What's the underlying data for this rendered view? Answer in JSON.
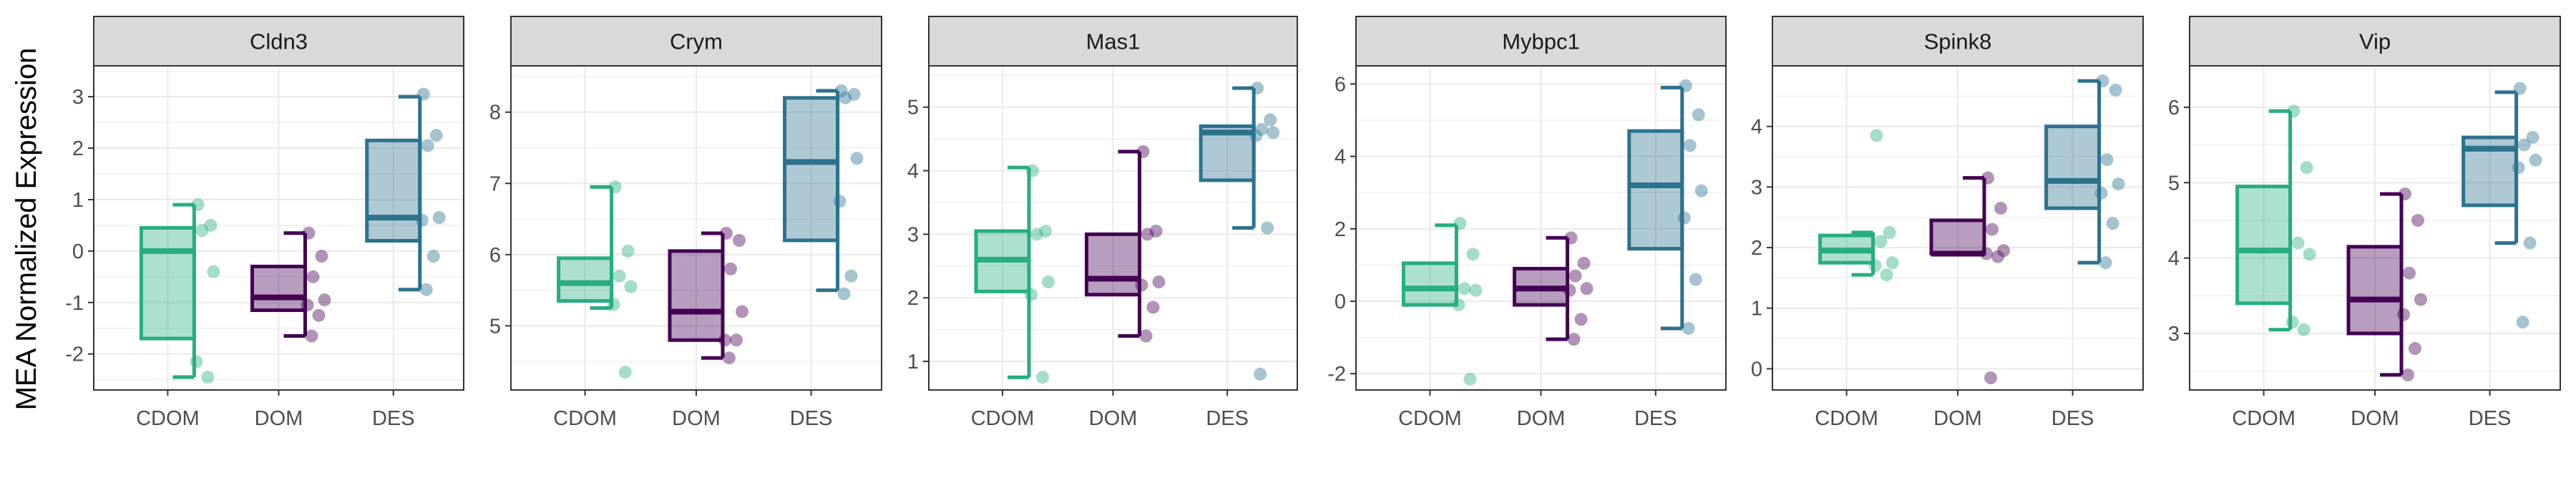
{
  "figure": {
    "ylabel": "MEA Normalized Expression"
  },
  "colors": {
    "CDOM": "#27ad81",
    "DOM": "#440154",
    "DES": "#2c728e",
    "strip_fill": "#d9d9d9",
    "grid": "#ebebeb",
    "border": "#333333"
  },
  "chart_data": [
    {
      "type": "boxplot",
      "title": "Cldn3",
      "categories": [
        "CDOM",
        "DOM",
        "DES"
      ],
      "ylim": [
        -2.7,
        3.6
      ],
      "yticks": [
        -2,
        -1,
        0,
        1,
        2,
        3
      ],
      "boxes": [
        {
          "group": "CDOM",
          "q1": -1.7,
          "median": 0.0,
          "q3": 0.45,
          "whisker_low": -2.45,
          "whisker_high": 0.9
        },
        {
          "group": "DOM",
          "q1": -1.15,
          "median": -0.9,
          "q3": -0.3,
          "whisker_low": -1.65,
          "whisker_high": 0.35
        },
        {
          "group": "DES",
          "q1": 0.2,
          "median": 0.65,
          "q3": 2.15,
          "whisker_low": -0.75,
          "whisker_high": 3.0
        }
      ],
      "points": [
        {
          "group": "CDOM",
          "values": [
            0.9,
            0.5,
            0.4,
            -0.4,
            -2.15,
            -2.45
          ]
        },
        {
          "group": "DOM",
          "values": [
            0.35,
            -0.1,
            -0.5,
            -0.95,
            -1.05,
            -1.25,
            -1.65
          ]
        },
        {
          "group": "DES",
          "values": [
            3.05,
            2.25,
            2.05,
            0.65,
            0.6,
            -0.1,
            -0.75
          ]
        }
      ]
    },
    {
      "type": "boxplot",
      "title": "Crym",
      "categories": [
        "CDOM",
        "DOM",
        "DES"
      ],
      "ylim": [
        4.1,
        8.65
      ],
      "yticks": [
        5,
        6,
        7,
        8
      ],
      "boxes": [
        {
          "group": "CDOM",
          "q1": 5.35,
          "median": 5.6,
          "q3": 5.95,
          "whisker_low": 5.25,
          "whisker_high": 6.95
        },
        {
          "group": "DOM",
          "q1": 4.8,
          "median": 5.2,
          "q3": 6.05,
          "whisker_low": 4.55,
          "whisker_high": 6.3
        },
        {
          "group": "DES",
          "q1": 6.2,
          "median": 7.3,
          "q3": 8.2,
          "whisker_low": 5.5,
          "whisker_high": 8.3
        }
      ],
      "points": [
        {
          "group": "CDOM",
          "values": [
            6.95,
            6.05,
            5.7,
            5.55,
            5.3,
            4.35
          ]
        },
        {
          "group": "DOM",
          "values": [
            6.3,
            6.2,
            5.8,
            5.2,
            4.8,
            4.8,
            4.55
          ]
        },
        {
          "group": "DES",
          "values": [
            8.3,
            8.25,
            8.2,
            7.35,
            6.75,
            5.7,
            5.45
          ]
        }
      ]
    },
    {
      "type": "boxplot",
      "title": "Mas1",
      "categories": [
        "CDOM",
        "DOM",
        "DES"
      ],
      "ylim": [
        0.55,
        5.65
      ],
      "yticks": [
        1,
        2,
        3,
        4,
        5
      ],
      "boxes": [
        {
          "group": "CDOM",
          "q1": 2.1,
          "median": 2.6,
          "q3": 3.05,
          "whisker_low": 0.75,
          "whisker_high": 4.05
        },
        {
          "group": "DOM",
          "q1": 2.05,
          "median": 2.3,
          "q3": 3.0,
          "whisker_low": 1.4,
          "whisker_high": 4.3
        },
        {
          "group": "DES",
          "q1": 3.85,
          "median": 4.6,
          "q3": 4.7,
          "whisker_low": 3.1,
          "whisker_high": 5.3
        }
      ],
      "points": [
        {
          "group": "CDOM",
          "values": [
            4.0,
            3.05,
            3.0,
            2.25,
            2.05,
            0.75
          ]
        },
        {
          "group": "DOM",
          "values": [
            4.3,
            3.05,
            3.0,
            2.25,
            2.2,
            1.85,
            1.4
          ]
        },
        {
          "group": "DES",
          "values": [
            5.3,
            4.8,
            4.65,
            4.6,
            4.55,
            3.1,
            0.8
          ]
        }
      ]
    },
    {
      "type": "boxplot",
      "title": "Mybpc1",
      "categories": [
        "CDOM",
        "DOM",
        "DES"
      ],
      "ylim": [
        -2.45,
        6.5
      ],
      "yticks": [
        -2,
        0,
        2,
        4,
        6
      ],
      "boxes": [
        {
          "group": "CDOM",
          "q1": -0.1,
          "median": 0.35,
          "q3": 1.05,
          "whisker_low": -0.1,
          "whisker_high": 2.1
        },
        {
          "group": "DOM",
          "q1": -0.1,
          "median": 0.35,
          "q3": 0.9,
          "whisker_low": -1.05,
          "whisker_high": 1.75
        },
        {
          "group": "DES",
          "q1": 1.45,
          "median": 3.2,
          "q3": 4.7,
          "whisker_low": -0.75,
          "whisker_high": 5.9
        }
      ],
      "points": [
        {
          "group": "CDOM",
          "values": [
            2.15,
            1.3,
            0.35,
            0.3,
            -0.1,
            -2.15
          ]
        },
        {
          "group": "DOM",
          "values": [
            1.75,
            1.05,
            0.7,
            0.35,
            0.3,
            -0.5,
            -1.05
          ]
        },
        {
          "group": "DES",
          "values": [
            5.95,
            5.15,
            4.3,
            3.05,
            2.3,
            0.6,
            -0.75
          ]
        }
      ]
    },
    {
      "type": "boxplot",
      "title": "Spink8",
      "categories": [
        "CDOM",
        "DOM",
        "DES"
      ],
      "ylim": [
        -0.35,
        5.0
      ],
      "yticks": [
        0,
        1,
        2,
        3,
        4
      ],
      "boxes": [
        {
          "group": "CDOM",
          "q1": 1.75,
          "median": 1.95,
          "q3": 2.2,
          "whisker_low": 1.55,
          "whisker_high": 2.25
        },
        {
          "group": "DOM",
          "q1": 1.9,
          "median": 1.9,
          "q3": 2.45,
          "whisker_low": 1.9,
          "whisker_high": 3.15
        },
        {
          "group": "DES",
          "q1": 2.65,
          "median": 3.1,
          "q3": 4.0,
          "whisker_low": 1.75,
          "whisker_high": 4.75
        }
      ],
      "points": [
        {
          "group": "CDOM",
          "values": [
            3.85,
            2.25,
            2.1,
            1.75,
            1.7,
            1.55
          ]
        },
        {
          "group": "DOM",
          "values": [
            3.15,
            2.65,
            2.3,
            1.95,
            1.9,
            1.85,
            -0.15
          ]
        },
        {
          "group": "DES",
          "values": [
            4.75,
            4.6,
            3.45,
            3.05,
            2.9,
            2.4,
            1.75
          ]
        }
      ]
    },
    {
      "type": "boxplot",
      "title": "Vip",
      "categories": [
        "CDOM",
        "DOM",
        "DES"
      ],
      "ylim": [
        2.25,
        6.55
      ],
      "yticks": [
        3,
        4,
        5,
        6
      ],
      "boxes": [
        {
          "group": "CDOM",
          "q1": 3.4,
          "median": 4.1,
          "q3": 4.95,
          "whisker_low": 3.05,
          "whisker_high": 5.95
        },
        {
          "group": "DOM",
          "q1": 3.0,
          "median": 3.45,
          "q3": 4.15,
          "whisker_low": 2.45,
          "whisker_high": 4.85
        },
        {
          "group": "DES",
          "q1": 4.7,
          "median": 5.45,
          "q3": 5.6,
          "whisker_low": 4.2,
          "whisker_high": 6.2
        }
      ],
      "points": [
        {
          "group": "CDOM",
          "values": [
            5.95,
            5.2,
            4.2,
            4.05,
            3.15,
            3.05
          ]
        },
        {
          "group": "DOM",
          "values": [
            4.85,
            4.5,
            3.8,
            3.45,
            3.25,
            2.8,
            2.45
          ]
        },
        {
          "group": "DES",
          "values": [
            6.25,
            5.6,
            5.5,
            5.3,
            5.2,
            4.2,
            3.15
          ]
        }
      ]
    }
  ]
}
